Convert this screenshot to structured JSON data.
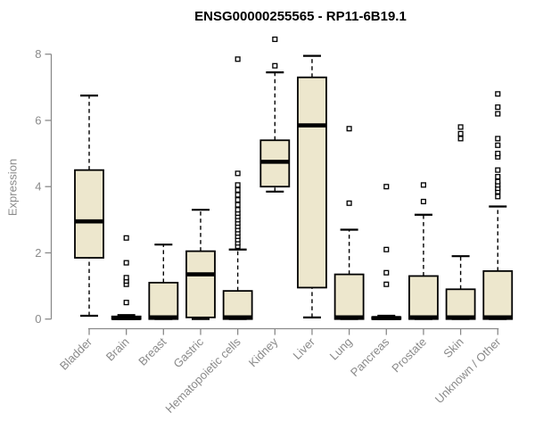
{
  "chart_data": {
    "type": "boxplot",
    "title": "ENSG00000255565 - RP11-6B19.1",
    "ylabel": "Expression",
    "xlabel": "",
    "yticks": [
      0,
      2,
      4,
      6,
      8
    ],
    "ylim": [
      0,
      8.6
    ],
    "grid": false,
    "categories": [
      "Bladder",
      "Brain",
      "Breast",
      "Gastric",
      "Hematopoietic cells",
      "Kidney",
      "Liver",
      "Lung",
      "Pancreas",
      "Prostate",
      "Skin",
      "Unknown / Other"
    ],
    "boxes": [
      {
        "category": "Bladder",
        "low": 0.1,
        "q1": 1.85,
        "median": 2.95,
        "q3": 4.5,
        "high": 6.75,
        "outliers": []
      },
      {
        "category": "Brain",
        "low": 0,
        "q1": 0,
        "median": 0.03,
        "q3": 0.08,
        "high": 0.12,
        "outliers": [
          0.5,
          1.05,
          1.15,
          1.25,
          1.7,
          2.45
        ]
      },
      {
        "category": "Breast",
        "low": 0,
        "q1": 0,
        "median": 0.05,
        "q3": 1.1,
        "high": 2.25,
        "outliers": []
      },
      {
        "category": "Gastric",
        "low": 0,
        "q1": 0.05,
        "median": 1.35,
        "q3": 2.05,
        "high": 3.3,
        "outliers": []
      },
      {
        "category": "Hematopoietic cells",
        "low": 0,
        "q1": 0,
        "median": 0.05,
        "q3": 0.85,
        "high": 2.1,
        "outliers": [
          2.2,
          2.3,
          2.4,
          2.5,
          2.6,
          2.7,
          2.8,
          2.9,
          3.0,
          3.1,
          3.2,
          3.3,
          3.45,
          3.6,
          3.75,
          3.9,
          4.05,
          4.4,
          7.85
        ]
      },
      {
        "category": "Kidney",
        "low": 3.85,
        "q1": 4.0,
        "median": 4.75,
        "q3": 5.4,
        "high": 7.45,
        "outliers": [
          7.65,
          8.45
        ]
      },
      {
        "category": "Liver",
        "low": 0.05,
        "q1": 0.95,
        "median": 5.85,
        "q3": 7.3,
        "high": 7.95,
        "outliers": []
      },
      {
        "category": "Lung",
        "low": 0,
        "q1": 0,
        "median": 0.05,
        "q3": 1.35,
        "high": 2.7,
        "outliers": [
          3.5,
          5.75
        ]
      },
      {
        "category": "Pancreas",
        "low": 0,
        "q1": 0,
        "median": 0.03,
        "q3": 0.06,
        "high": 0.1,
        "outliers": [
          1.05,
          1.4,
          2.1,
          4.0
        ]
      },
      {
        "category": "Prostate",
        "low": 0,
        "q1": 0,
        "median": 0.05,
        "q3": 1.3,
        "high": 3.15,
        "outliers": [
          3.55,
          4.05
        ]
      },
      {
        "category": "Skin",
        "low": 0,
        "q1": 0,
        "median": 0.05,
        "q3": 0.9,
        "high": 1.9,
        "outliers": [
          5.45,
          5.6,
          5.8
        ]
      },
      {
        "category": "Unknown / Other",
        "low": 0,
        "q1": 0,
        "median": 0.05,
        "q3": 1.45,
        "high": 3.4,
        "outliers": [
          3.7,
          3.85,
          3.95,
          4.05,
          4.15,
          4.3,
          4.5,
          4.9,
          5.0,
          5.25,
          5.45,
          6.2,
          6.4,
          6.8
        ]
      }
    ],
    "colors": {
      "box_fill": "#ede7cd",
      "box_border": "#000000",
      "median": "#000000",
      "whisker": "#000000",
      "outlier_stroke": "#000000",
      "outlier_fill": "#ffffff",
      "axis": "#8a8a8a",
      "tick_label": "#8a8a8a",
      "title": "#000000"
    }
  }
}
